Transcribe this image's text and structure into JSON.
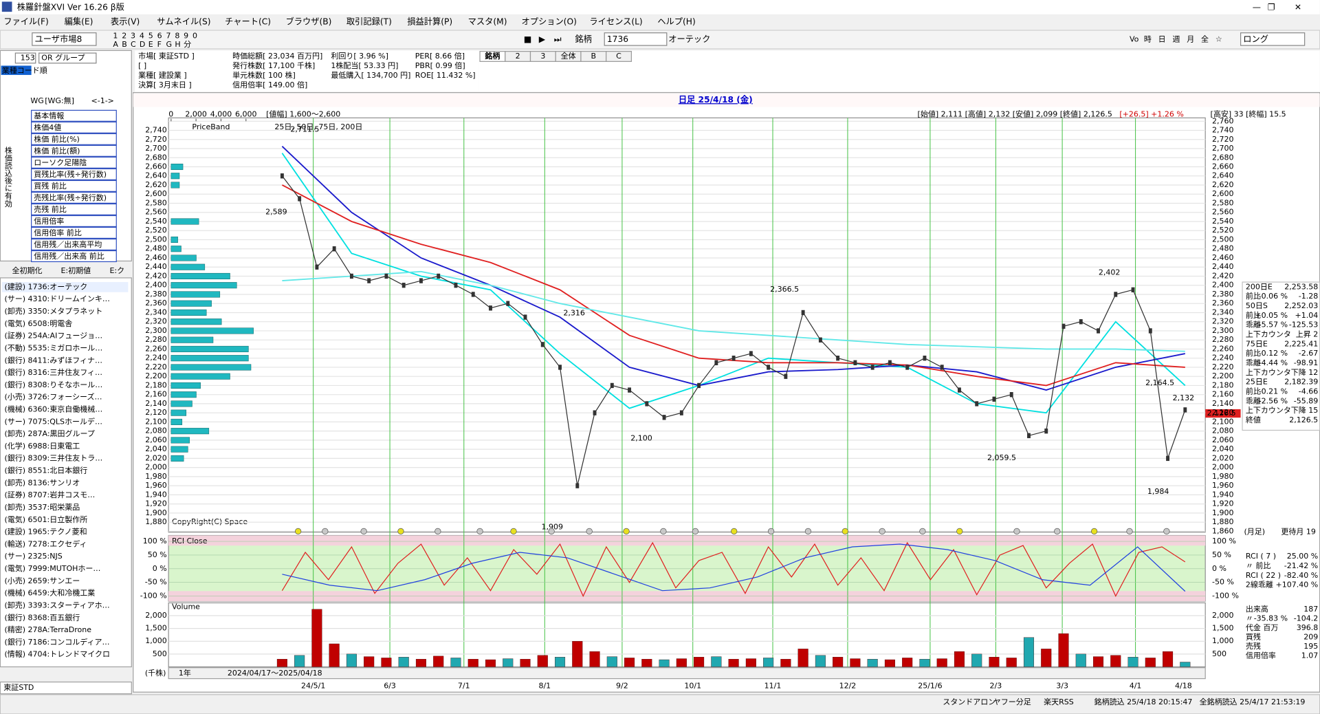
{
  "window": {
    "title": "株羅針盤XVI Ver 16.26 β版"
  },
  "menu": [
    "ファイル(F)",
    "編集(E)",
    "表示(V)",
    "サムネイル(S)",
    "チャート(C)",
    "ブラウザ(B)",
    "取引記録(T)",
    "損益計算(P)",
    "マスタ(M)",
    "オプション(O)",
    "ライセンス(L)",
    "ヘルプ(H)"
  ],
  "toolbar": {
    "market": "ユーザ市場8",
    "tile_keys": [
      "1",
      "2",
      "3",
      "4",
      "5",
      "6",
      "7",
      "8",
      "9",
      "0"
    ],
    "tile_keys2": [
      "A",
      "B",
      "C",
      "D",
      "E",
      "F",
      "G",
      "H",
      "分"
    ],
    "code_label": "銘柄",
    "code": "1736",
    "name": "オーテック",
    "periods": [
      "Vo",
      "時",
      "日",
      "週",
      "月",
      "全",
      "☆"
    ],
    "mode": "ロング"
  },
  "info": {
    "col1": [
      "市場[ 東証STD ]",
      "[ ]",
      "業種[ 建設業 ]",
      "決算[ 3月末日 ]"
    ],
    "col2": [
      "時価総額[ 23,034 百万円]",
      "発行株数[ 17,100 千株]",
      "単元株数[ 100 株]",
      "信用倍率[ 149.00 倍]"
    ],
    "col3": [
      "利回り[ 3.96 %]",
      "1株配当[ 53.33 円]",
      "最低購入[ 134,700 円]"
    ],
    "col4": [
      "PER[ 8.66 倍]",
      "PBR[ 0.99 倍]",
      "ROE[ 11.432 %]"
    ]
  },
  "tabs": [
    "銘柄",
    "2",
    "3",
    "全体",
    "B",
    "C"
  ],
  "left": {
    "count": "153",
    "group": "OR グループ",
    "sort": "業種コード順",
    "wg": "WG",
    "wg2": "[WG:無]",
    "nav": "<-1->",
    "side_label": "株価読込後に有効",
    "items": [
      "基本情報",
      "株価4値",
      "株価 前比(%)",
      "株価 前比(額)",
      "ローソク足陽陰",
      "買残比率(残÷発行数)",
      "買残 前比",
      "売残比率(残÷発行数)",
      "売残 前比",
      "信用倍率",
      "信用倍率 前比",
      "信用残／出来高平均",
      "信用残／出来高 前比"
    ],
    "buttons": [
      "全初期化",
      "E:初期値",
      "E:ク"
    ],
    "stocks": [
      "(建設) 1736:オーテック",
      "(サー) 4310:ドリームインキ…",
      "(卸売) 3350:メタプラネット",
      "(電気) 6508:明電舎",
      "(証券) 254A:AIフュージョ…",
      "(不動) 5535:ミガロホール…",
      "(銀行) 8411:みずほフィナ…",
      "(銀行) 8316:三井住友フィ…",
      "(銀行) 8308:りそなホール…",
      "(小売) 3726:フォーシーズ…",
      "(機械) 6360:東京自働機械…",
      "(サー) 7075:QLSホールデ…",
      "(卸売) 287A:黒田グループ",
      "(化学) 6988:日東電工",
      "(銀行) 8309:三井住友トラ…",
      "(銀行) 8551:北日本銀行",
      "(卸売) 8136:サンリオ",
      "(証券) 8707:岩井コスモ…",
      "(卸売) 3537:昭栄薬品",
      "(電気) 6501:日立製作所",
      "(建設) 1965:テクノ菱和",
      "(輸送) 7278:エクセディ",
      "(サー) 2325:NJS",
      "(電気) 7999:MUTOHホー…",
      "(小売) 2659:サンエー",
      "(機械) 6459:大和冷機工業",
      "(卸売) 3393:スターティアホ…",
      "(銀行) 8368:百五銀行",
      "(精密) 278A:TerraDrone",
      "(銀行) 7186:コンコルディア…",
      "(情報) 4704:トレンドマイクロ"
    ]
  },
  "chart": {
    "type": "line",
    "title": "日足 25/4/18 (金)",
    "band_header": "[値幅] 1,600～2,600",
    "band_ticks": [
      0,
      {
        "value": 2000,
        "label": "2,000"
      },
      {
        "value": 4000,
        "label": "4,000"
      },
      {
        "value": 6000,
        "label": "6,000"
      }
    ],
    "ohlc": "[始値] 2,111 [高値] 2,132 [安値] 2,099 [終値] 2,126.5",
    "change": "[+26.5] +1.26 %",
    "range": "[高安] 33 [終幅] 15.5",
    "band_label": "PriceBand",
    "ma_label": "25日, 50日, 75日, 200日",
    "copyright": "CopyRight(C) Space",
    "dates": [
      "24/5/1",
      "6/3",
      "7/1",
      "8/1",
      "9/2",
      "10/1",
      "11/1",
      "12/2",
      "25/1/6",
      "2/3",
      "3/3",
      "4/1",
      "4/18"
    ],
    "ylim": [
      1860,
      2760
    ],
    "yticks": [
      {
        "value": 1860,
        "label": "1,860"
      },
      {
        "value": 1880,
        "label": "1,880"
      },
      {
        "value": 1900,
        "label": "1,900"
      },
      {
        "value": 1920,
        "label": "1,920"
      },
      {
        "value": 1940,
        "label": "1,940"
      },
      {
        "value": 1960,
        "label": "1,960"
      },
      {
        "value": 1980,
        "label": "1,980"
      },
      {
        "value": 2000,
        "label": "2,000"
      },
      {
        "value": 2020,
        "label": "2,020"
      },
      {
        "value": 2040,
        "label": "2,040"
      },
      {
        "value": 2060,
        "label": "2,060"
      },
      {
        "value": 2080,
        "label": "2,080"
      },
      {
        "value": 2100,
        "label": "2,100"
      },
      {
        "value": 2120,
        "label": "2,120"
      },
      {
        "value": 2140,
        "label": "2,140"
      },
      {
        "value": 2160,
        "label": "2,160"
      },
      {
        "value": 2180,
        "label": "2,180"
      },
      {
        "value": 2200,
        "label": "2,200"
      },
      {
        "value": 2220,
        "label": "2,220"
      },
      {
        "value": 2240,
        "label": "2,240"
      },
      {
        "value": 2260,
        "label": "2,260"
      },
      {
        "value": 2280,
        "label": "2,280"
      },
      {
        "value": 2300,
        "label": "2,300"
      },
      {
        "value": 2320,
        "label": "2,320"
      },
      {
        "value": 2340,
        "label": "2,340"
      },
      {
        "value": 2360,
        "label": "2,360"
      },
      {
        "value": 2380,
        "label": "2,380"
      },
      {
        "value": 2400,
        "label": "2,400"
      },
      {
        "value": 2420,
        "label": "2,420"
      },
      {
        "value": 2440,
        "label": "2,440"
      },
      {
        "value": 2460,
        "label": "2,460"
      },
      {
        "value": 2480,
        "label": "2,480"
      },
      {
        "value": 2500,
        "label": "2,500"
      },
      {
        "value": 2520,
        "label": "2,520"
      },
      {
        "value": 2540,
        "label": "2,540"
      },
      {
        "value": 2560,
        "label": "2,560"
      },
      {
        "value": 2580,
        "label": "2,580"
      },
      {
        "value": 2600,
        "label": "2,600"
      },
      {
        "value": 2620,
        "label": "2,620"
      },
      {
        "value": 2640,
        "label": "2,640"
      },
      {
        "value": 2660,
        "label": "2,660"
      },
      {
        "value": 2680,
        "label": "2,680"
      },
      {
        "value": 2700,
        "label": "2,700"
      },
      {
        "value": 2720,
        "label": "2,720"
      },
      {
        "value": 2740,
        "label": "2,740"
      },
      {
        "value": 2760,
        "label": "2,760"
      }
    ],
    "close": {
      "color": "#303030",
      "values": [
        2640,
        2590,
        2440,
        2480,
        2420,
        2410,
        2420,
        2400,
        2410,
        2420,
        2400,
        2380,
        2350,
        2360,
        2330,
        2270,
        2220,
        1960,
        2120,
        2180,
        2170,
        2140,
        2110,
        2120,
        2180,
        2230,
        2240,
        2250,
        2220,
        2200,
        2340,
        2280,
        2240,
        2230,
        2220,
        2230,
        2220,
        2240,
        2220,
        2170,
        2140,
        2150,
        2160,
        2070,
        2080,
        2310,
        2320,
        2300,
        2380,
        2390,
        2300,
        2020,
        2126.5
      ]
    },
    "ma": [
      {
        "color": "#00e0e0",
        "values": [
          2690,
          2470,
          2420,
          2390,
          2250,
          2130,
          2180,
          2240,
          2230,
          2220,
          2140,
          2120,
          2320,
          2180
        ]
      },
      {
        "color": "#1a1acc",
        "values": [
          2705,
          2560,
          2460,
          2400,
          2330,
          2220,
          2180,
          2210,
          2215,
          2225,
          2210,
          2170,
          2220,
          2250
        ]
      },
      {
        "color": "#e02020",
        "values": [
          2620,
          2540,
          2490,
          2450,
          2390,
          2290,
          2240,
          2230,
          2230,
          2225,
          2200,
          2180,
          2230,
          2220
        ]
      },
      {
        "color": "#60e8e8",
        "values": [
          2410,
          2420,
          2430,
          2400,
          2360,
          2330,
          2300,
          2290,
          2280,
          2270,
          2265,
          2260,
          2260,
          2255
        ]
      }
    ],
    "annotations": [
      {
        "text": "2,711.5",
        "color": "#0000cc"
      },
      {
        "text": "2,589",
        "color": "#d00000"
      },
      {
        "text": "2,316",
        "color": "#0000cc"
      },
      {
        "text": "2,100",
        "color": "#d00000"
      },
      {
        "text": "1,909",
        "color": "#d00000"
      },
      {
        "text": "2,366.5",
        "color": "#0000cc"
      },
      {
        "text": "2,059.5",
        "color": "#d00000"
      },
      {
        "text": "2,402",
        "color": "#0000cc"
      },
      {
        "text": "2,164.5",
        "color": "#0000cc"
      },
      {
        "text": "2,132",
        "color": "#0000cc"
      },
      {
        "text": "1,984",
        "color": "#d00000"
      }
    ],
    "price_label": "2,126.5",
    "volume_by_price": {
      "color": "#20b8c0",
      "prices": [
        2660,
        2640,
        2620,
        2540,
        2500,
        2480,
        2460,
        2440,
        2420,
        2400,
        2380,
        2360,
        2340,
        2320,
        2300,
        2280,
        2260,
        2240,
        2220,
        2200,
        2180,
        2160,
        2140,
        2120,
        2100,
        2080,
        2060,
        2040,
        2020
      ],
      "values": [
        950,
        670,
        670,
        2220,
        540,
        810,
        2020,
        2700,
        4720,
        5260,
        3910,
        3240,
        2830,
        4040,
        6600,
        3370,
        6200,
        6200,
        6400,
        4720,
        2360,
        2020,
        1690,
        1210,
        880,
        3030,
        1480,
        1350,
        1010
      ]
    },
    "ma_panel": [
      [
        "200日E",
        "2,253.58"
      ],
      [
        "前比",
        "-0.06 %",
        "-1.28"
      ],
      [
        "50日S",
        "2,252.03"
      ],
      [
        "前比",
        "+0.05 %",
        "+1.04"
      ],
      [
        "乖離",
        "-5.57 %",
        "-125.53"
      ],
      [
        "上下カウンタ",
        "上昇 2"
      ],
      [
        "75日E",
        "2,225.41"
      ],
      [
        "前比",
        "-0.12 %",
        "-2.67"
      ],
      [
        "乖離",
        "-4.44 %",
        "-98.91"
      ],
      [
        "上下カウンタ",
        "下降 12"
      ],
      [
        "25日E",
        "2,182.39"
      ],
      [
        "前比",
        "-0.21 %",
        "-4.66"
      ],
      [
        "乖離",
        "-2.56 %",
        "-55.89"
      ],
      [
        "上下カウンタ",
        "下降 15"
      ],
      [
        "終値",
        "2,126.5"
      ]
    ],
    "month_label": "(月足)",
    "update": "更待月 19",
    "rci": {
      "title": "RCI Close",
      "ylim": [
        -100,
        100
      ],
      "yticks": [
        {
          "value": 100,
          "label": "100 %"
        },
        {
          "value": 50,
          "label": "50 %"
        },
        {
          "value": 0,
          "label": "0 %"
        },
        {
          "value": -50,
          "label": "-50 %"
        },
        {
          "value": -100,
          "label": "-100 %"
        }
      ],
      "series": [
        {
          "color": "#e02020",
          "values": [
            -80,
            60,
            -40,
            80,
            -90,
            20,
            90,
            -60,
            40,
            -80,
            70,
            -20,
            90,
            -100,
            80,
            -50,
            95,
            -70,
            30,
            60,
            -90,
            80,
            -30,
            90,
            -60,
            40,
            -80,
            95,
            -40,
            70,
            -95,
            50,
            85,
            -70,
            20,
            90,
            -100,
            60,
            80,
            25
          ]
        },
        {
          "color": "#2040e0",
          "values": [
            -20,
            -60,
            -80,
            -40,
            20,
            60,
            40,
            -20,
            -80,
            -70,
            -30,
            40,
            80,
            90,
            70,
            30,
            -40,
            -60,
            80,
            -82.4
          ]
        }
      ],
      "panel": [
        [
          "RCI ( 7 )",
          "25.00 %"
        ],
        [
          "〃 前比",
          "-21.42 %"
        ],
        [
          "RCI ( 22 )",
          "-82.40 %"
        ],
        [
          "2線乖離",
          "+107.40 %"
        ]
      ]
    },
    "volume": {
      "title": "Volume",
      "unit": "(千株)",
      "ylim": [
        0,
        2500
      ],
      "yticks": [
        500,
        {
          "value": 1000,
          "label": "1,000"
        },
        {
          "value": 1500,
          "label": "1,500"
        },
        {
          "value": 2000,
          "label": "2,000"
        }
      ],
      "values": [
        300,
        450,
        2250,
        900,
        500,
        400,
        350,
        380,
        300,
        420,
        350,
        300,
        280,
        320,
        300,
        450,
        380,
        1000,
        600,
        400,
        350,
        300,
        280,
        320,
        380,
        400,
        300,
        320,
        350,
        300,
        700,
        450,
        380,
        320,
        300,
        280,
        350,
        300,
        320,
        600,
        500,
        380,
        350,
        1150,
        700,
        1300,
        500,
        400,
        450,
        380,
        350,
        600,
        187
      ],
      "panel": [
        [
          "出来高",
          "187"
        ],
        [
          "〃",
          "-35.83 %",
          "-104.2"
        ],
        [
          "代金 百万",
          "396.8"
        ],
        [
          "買残",
          "209"
        ],
        [
          "売残",
          "195"
        ],
        [
          "信用倍率",
          "1.07"
        ]
      ]
    },
    "footer": {
      "period": "1年",
      "range": "2024/04/17～2025/04/18"
    }
  },
  "status": {
    "market": "東証STD",
    "items": [
      "スタンドアロン",
      "ヤフー分足",
      "楽天RSS",
      "銘柄読込 25/4/18 20:15:47",
      "全銘柄読込 25/4/17 21:53:19"
    ]
  }
}
